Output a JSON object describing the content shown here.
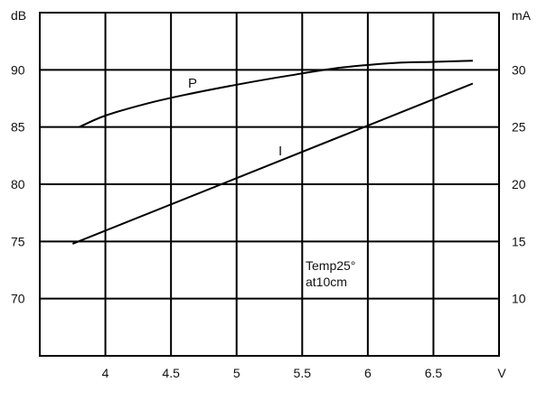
{
  "chart_data": {
    "type": "line",
    "title": "",
    "xlabel": "V",
    "ylabel_left": "dB",
    "ylabel_right": "mA",
    "xlim": [
      3.5,
      7.0
    ],
    "ylim_left": [
      65,
      95
    ],
    "ylim_right": [
      5,
      35
    ],
    "grid": true,
    "x_ticks": [
      "4",
      "4.5",
      "5",
      "5.5",
      "6",
      "6.5"
    ],
    "y_left_ticks": [
      "70",
      "75",
      "80",
      "85",
      "90"
    ],
    "y_right_ticks": [
      "10",
      "15",
      "20",
      "25",
      "30"
    ],
    "series": [
      {
        "name": "P",
        "axis": "left",
        "x": [
          3.8,
          4.0,
          4.3,
          4.6,
          5.0,
          5.4,
          5.8,
          6.2,
          6.5,
          6.8
        ],
        "y": [
          85.0,
          86.0,
          87.0,
          87.8,
          88.7,
          89.5,
          90.2,
          90.6,
          90.7,
          90.8
        ]
      },
      {
        "name": "I",
        "axis": "right",
        "x": [
          3.75,
          6.8
        ],
        "y": [
          14.8,
          28.8
        ]
      }
    ],
    "annotations": [
      "Temp25°",
      "at10cm"
    ]
  }
}
